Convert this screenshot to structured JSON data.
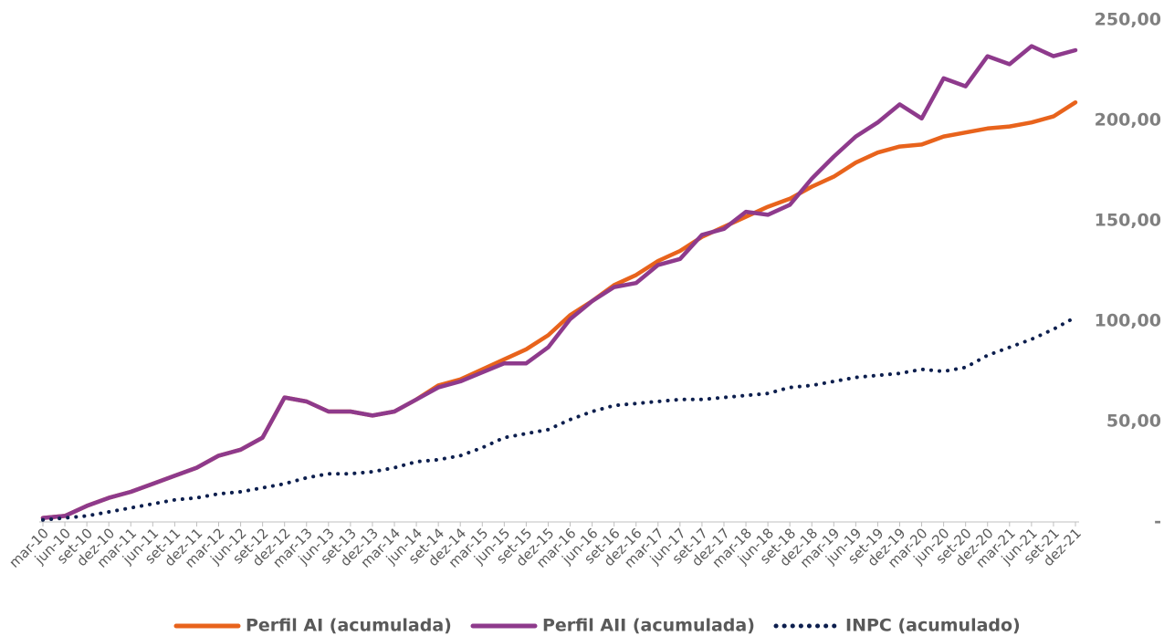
{
  "chart_data": {
    "type": "line",
    "categories": [
      "mar-10",
      "jun-10",
      "set-10",
      "dez-10",
      "mar-11",
      "jun-11",
      "set-11",
      "dez-11",
      "mar-12",
      "jun-12",
      "set-12",
      "dez-12",
      "mar-13",
      "jun-13",
      "set-13",
      "dez-13",
      "mar-14",
      "jun-14",
      "set-14",
      "dez-14",
      "mar-15",
      "jun-15",
      "set-15",
      "dez-15",
      "mar-16",
      "jun-16",
      "set-16",
      "dez-16",
      "mar-17",
      "jun-17",
      "set-17",
      "dez-17",
      "mar-18",
      "jun-18",
      "set-18",
      "dez-18",
      "mar-19",
      "jun-19",
      "set-19",
      "dez-19",
      "mar-20",
      "jun-20",
      "set-20",
      "dez-20",
      "mar-21",
      "jun-21",
      "set-21",
      "dez-21"
    ],
    "series": [
      {
        "name": "Perfil AI (acumulada)",
        "color": "#e8631c",
        "style": "solid",
        "values": [
          2,
          3,
          8,
          12,
          15,
          19,
          23,
          27,
          33,
          36,
          42,
          62,
          60,
          55,
          55,
          53,
          55,
          61,
          68,
          71,
          76,
          81,
          86,
          93,
          103,
          110,
          118,
          123,
          130,
          135,
          142,
          147,
          152,
          157,
          161,
          167,
          172,
          179,
          184,
          187,
          188,
          192,
          194,
          196,
          197,
          199,
          202,
          209
        ]
      },
      {
        "name": "Perfil AII (acumulada)",
        "color": "#8e3a8c",
        "style": "solid",
        "values": [
          2,
          3,
          8,
          12,
          15,
          19,
          23,
          27,
          33,
          36,
          42,
          62,
          60,
          55,
          55,
          53,
          55,
          61,
          67,
          70,
          74.5,
          79,
          79,
          87,
          101,
          110,
          117,
          119,
          128,
          131,
          143,
          146,
          154.5,
          153,
          158,
          171,
          182,
          192,
          199,
          208,
          201,
          221,
          217,
          232,
          228,
          237,
          232,
          235
        ]
      },
      {
        "name": "INPC (acumulado)",
        "color": "#0d1f4e",
        "style": "dotted",
        "values": [
          1,
          2,
          3,
          5,
          7,
          9,
          11,
          12,
          14,
          15,
          17,
          19,
          22,
          24,
          24,
          25,
          27,
          30,
          31,
          33,
          37,
          42,
          44,
          46,
          51,
          55,
          58,
          59,
          60,
          61,
          61,
          62,
          63,
          64,
          67,
          68,
          70,
          72,
          73,
          74,
          76,
          75,
          77,
          83,
          87,
          91,
          96,
          102
        ]
      }
    ],
    "ylim": [
      0,
      250
    ],
    "yticks": [
      {
        "value": 0,
        "label": "-"
      },
      {
        "value": 50,
        "label": "50,00"
      },
      {
        "value": 100,
        "label": "100,00"
      },
      {
        "value": 150,
        "label": "150,00"
      },
      {
        "value": 200,
        "label": "200,00"
      },
      {
        "value": 250,
        "label": "250,00"
      }
    ],
    "grid": false,
    "legend": "bottom"
  }
}
